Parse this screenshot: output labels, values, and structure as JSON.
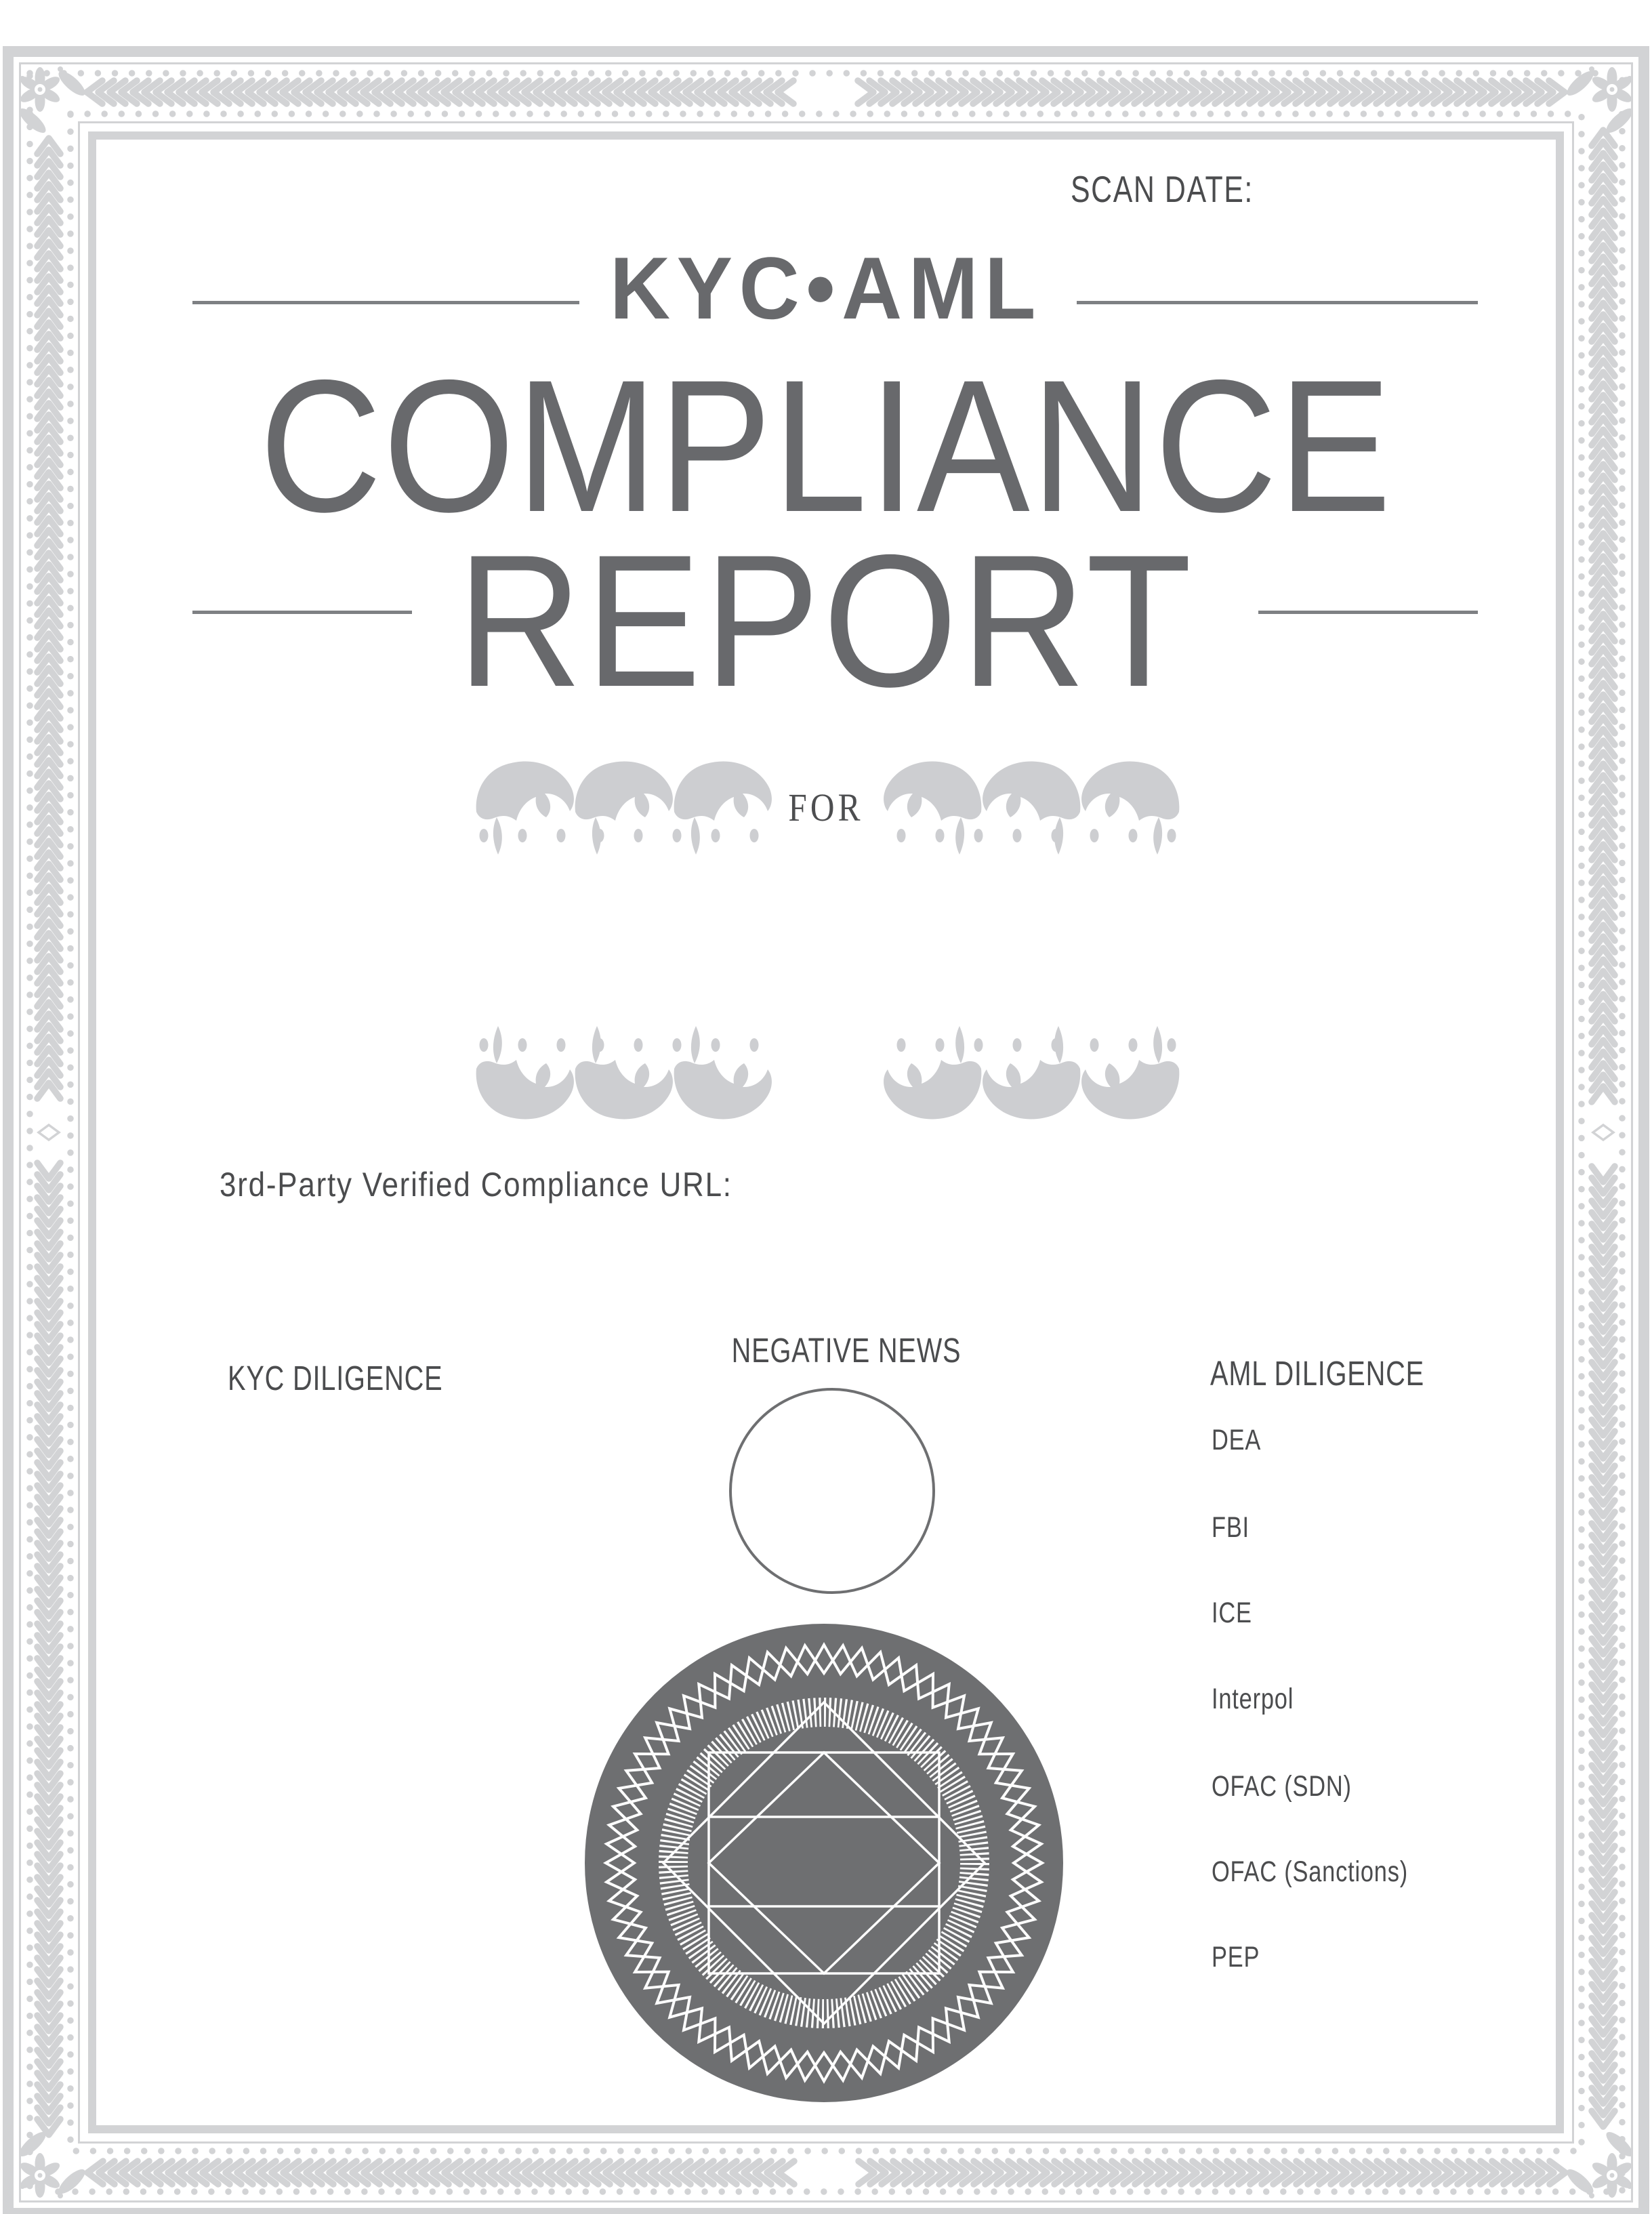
{
  "header": {
    "scan_date_label": "SCAN DATE:"
  },
  "brand": "KYC•AML",
  "title": {
    "line1": "COMPLIANCE",
    "line2": "REPORT"
  },
  "for_label": "FOR",
  "url_label": "3rd-Party Verified Compliance URL:",
  "sections": {
    "kyc": {
      "header": "KYC DILIGENCE"
    },
    "negative_news": {
      "header": "NEGATIVE NEWS"
    },
    "aml": {
      "header": "AML DILIGENCE",
      "items": [
        "DEA",
        "FBI",
        "ICE",
        "Interpol",
        "OFAC (SDN)",
        "OFAC (Sanctions)",
        "PEP"
      ]
    }
  },
  "colors": {
    "text": "#4b4c4e",
    "title": "#68696c",
    "rule": "#7e8083",
    "border": "#d2d3d5",
    "ornament": "#cdced1",
    "seal": "#6e6f71"
  }
}
